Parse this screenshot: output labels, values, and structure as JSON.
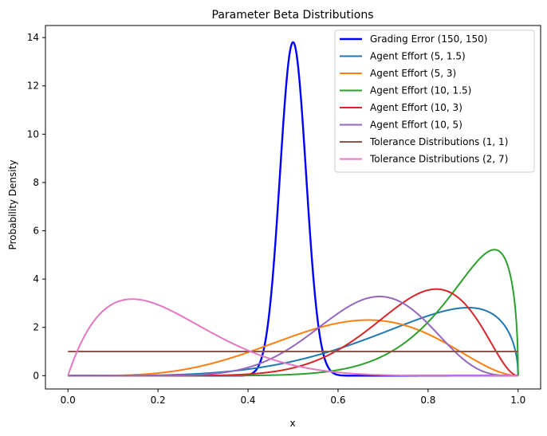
{
  "chart_data": {
    "type": "line",
    "title": "Parameter Beta Distributions",
    "xlabel": "x",
    "ylabel": "Probability Density",
    "xlim": [
      -0.05,
      1.05
    ],
    "ylim": [
      -0.55,
      14.5
    ],
    "xticks": [
      0.0,
      0.2,
      0.4,
      0.6,
      0.8,
      1.0
    ],
    "xtick_labels": [
      "0.0",
      "0.2",
      "0.4",
      "0.6",
      "0.8",
      "1.0"
    ],
    "yticks": [
      0,
      2,
      4,
      6,
      8,
      10,
      12,
      14
    ],
    "ytick_labels": [
      "0",
      "2",
      "4",
      "6",
      "8",
      "10",
      "12",
      "14"
    ],
    "grid": false,
    "legend_position": "top-right",
    "series": [
      {
        "name": "Grading Error (150, 150)",
        "alpha": 150,
        "beta": 150,
        "color": "#0000ff",
        "line_width": 2.4
      },
      {
        "name": "Agent Effort (5, 1.5)",
        "alpha": 5,
        "beta": 1.5,
        "color": "#1f77b4",
        "line_width": 2
      },
      {
        "name": "Agent Effort (5, 3)",
        "alpha": 5,
        "beta": 3,
        "color": "#ff7f0e",
        "line_width": 2
      },
      {
        "name": "Agent Effort (10, 1.5)",
        "alpha": 10,
        "beta": 1.5,
        "color": "#2ca02c",
        "line_width": 2
      },
      {
        "name": "Agent Effort (10, 3)",
        "alpha": 10,
        "beta": 3,
        "color": "#d62728",
        "line_width": 2
      },
      {
        "name": "Agent Effort (10, 5)",
        "alpha": 10,
        "beta": 5,
        "color": "#9467bd",
        "line_width": 2
      },
      {
        "name": "Tolerance Distributions (1, 1)",
        "alpha": 1,
        "beta": 1,
        "color": "#8c564b",
        "line_width": 2
      },
      {
        "name": "Tolerance Distributions (2, 7)",
        "alpha": 2,
        "beta": 7,
        "color": "#e377c2",
        "line_width": 2
      }
    ]
  }
}
